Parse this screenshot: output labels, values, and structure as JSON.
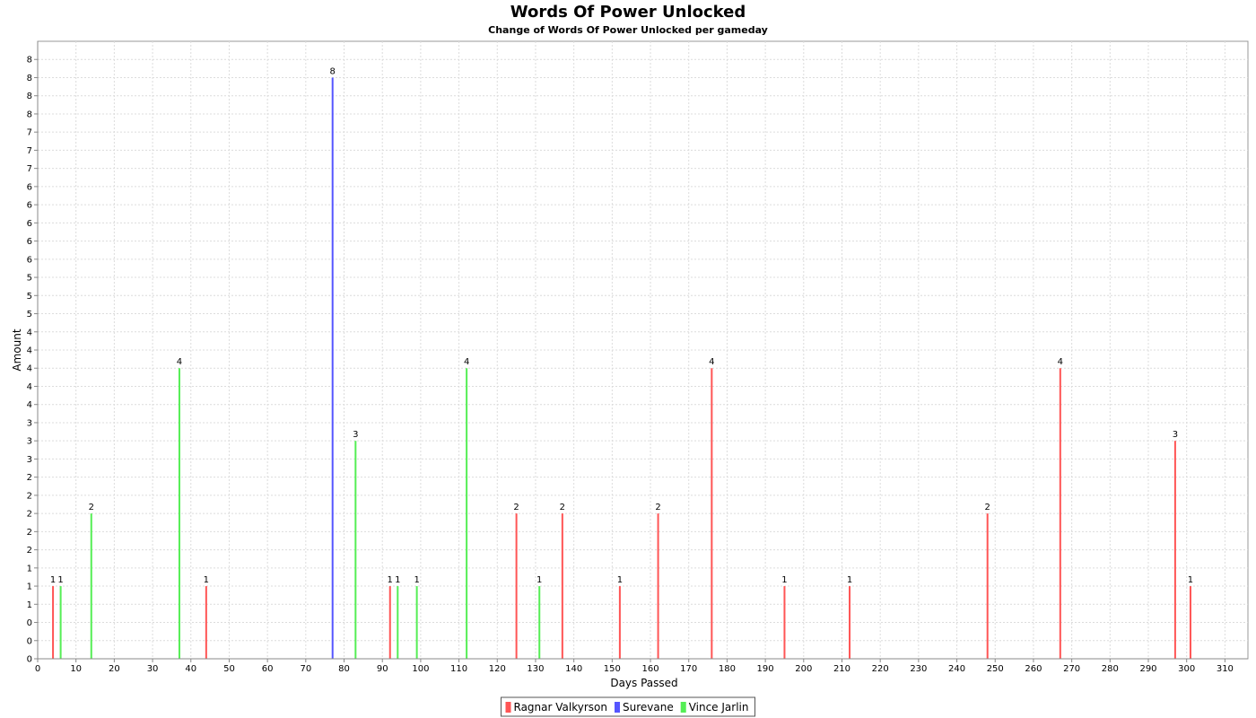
{
  "chart_data": {
    "type": "bar",
    "title": "Words Of Power Unlocked",
    "subtitle": "Change of Words Of Power Unlocked per gameday",
    "xlabel": "Days Passed",
    "ylabel": "Amount",
    "xlim": [
      0,
      316
    ],
    "ylim": [
      0,
      8.5
    ],
    "x_ticks": [
      0,
      10,
      20,
      30,
      40,
      50,
      60,
      70,
      80,
      90,
      100,
      110,
      120,
      130,
      140,
      150,
      160,
      170,
      180,
      190,
      200,
      210,
      220,
      230,
      240,
      250,
      260,
      270,
      280,
      290,
      300,
      310
    ],
    "y_ticks": [
      {
        "value": 0.0,
        "label": "0"
      },
      {
        "value": 0.25,
        "label": "0"
      },
      {
        "value": 0.5,
        "label": "0"
      },
      {
        "value": 0.75,
        "label": "1"
      },
      {
        "value": 1.0,
        "label": "1"
      },
      {
        "value": 1.25,
        "label": "1"
      },
      {
        "value": 1.5,
        "label": "2"
      },
      {
        "value": 1.75,
        "label": "2"
      },
      {
        "value": 2.0,
        "label": "2"
      },
      {
        "value": 2.25,
        "label": "2"
      },
      {
        "value": 2.5,
        "label": "2"
      },
      {
        "value": 2.75,
        "label": "3"
      },
      {
        "value": 3.0,
        "label": "3"
      },
      {
        "value": 3.25,
        "label": "3"
      },
      {
        "value": 3.5,
        "label": "4"
      },
      {
        "value": 3.75,
        "label": "4"
      },
      {
        "value": 4.0,
        "label": "4"
      },
      {
        "value": 4.25,
        "label": "4"
      },
      {
        "value": 4.5,
        "label": "4"
      },
      {
        "value": 4.75,
        "label": "5"
      },
      {
        "value": 5.0,
        "label": "5"
      },
      {
        "value": 5.25,
        "label": "5"
      },
      {
        "value": 5.5,
        "label": "6"
      },
      {
        "value": 5.75,
        "label": "6"
      },
      {
        "value": 6.0,
        "label": "6"
      },
      {
        "value": 6.25,
        "label": "6"
      },
      {
        "value": 6.5,
        "label": "6"
      },
      {
        "value": 6.75,
        "label": "7"
      },
      {
        "value": 7.0,
        "label": "7"
      },
      {
        "value": 7.25,
        "label": "7"
      },
      {
        "value": 7.5,
        "label": "8"
      },
      {
        "value": 7.75,
        "label": "8"
      },
      {
        "value": 8.0,
        "label": "8"
      },
      {
        "value": 8.25,
        "label": "8"
      }
    ],
    "grid": true,
    "legend_position": "bottom",
    "series": [
      {
        "name": "Ragnar Valkyrson",
        "color": "#ff5555",
        "points": [
          {
            "x": 4,
            "y": 1
          },
          {
            "x": 44,
            "y": 1
          },
          {
            "x": 92,
            "y": 1
          },
          {
            "x": 125,
            "y": 2
          },
          {
            "x": 137,
            "y": 2
          },
          {
            "x": 152,
            "y": 1
          },
          {
            "x": 162,
            "y": 2
          },
          {
            "x": 176,
            "y": 4
          },
          {
            "x": 195,
            "y": 1
          },
          {
            "x": 212,
            "y": 1
          },
          {
            "x": 248,
            "y": 2
          },
          {
            "x": 267,
            "y": 4
          },
          {
            "x": 297,
            "y": 3
          },
          {
            "x": 301,
            "y": 1
          }
        ]
      },
      {
        "name": "Surevane",
        "color": "#5555ff",
        "points": [
          {
            "x": 77,
            "y": 8
          }
        ]
      },
      {
        "name": "Vince Jarlin",
        "color": "#55ee55",
        "points": [
          {
            "x": 6,
            "y": 1
          },
          {
            "x": 14,
            "y": 2
          },
          {
            "x": 37,
            "y": 4
          },
          {
            "x": 83,
            "y": 3
          },
          {
            "x": 94,
            "y": 1
          },
          {
            "x": 99,
            "y": 1
          },
          {
            "x": 112,
            "y": 4
          },
          {
            "x": 131,
            "y": 1
          }
        ]
      }
    ]
  }
}
